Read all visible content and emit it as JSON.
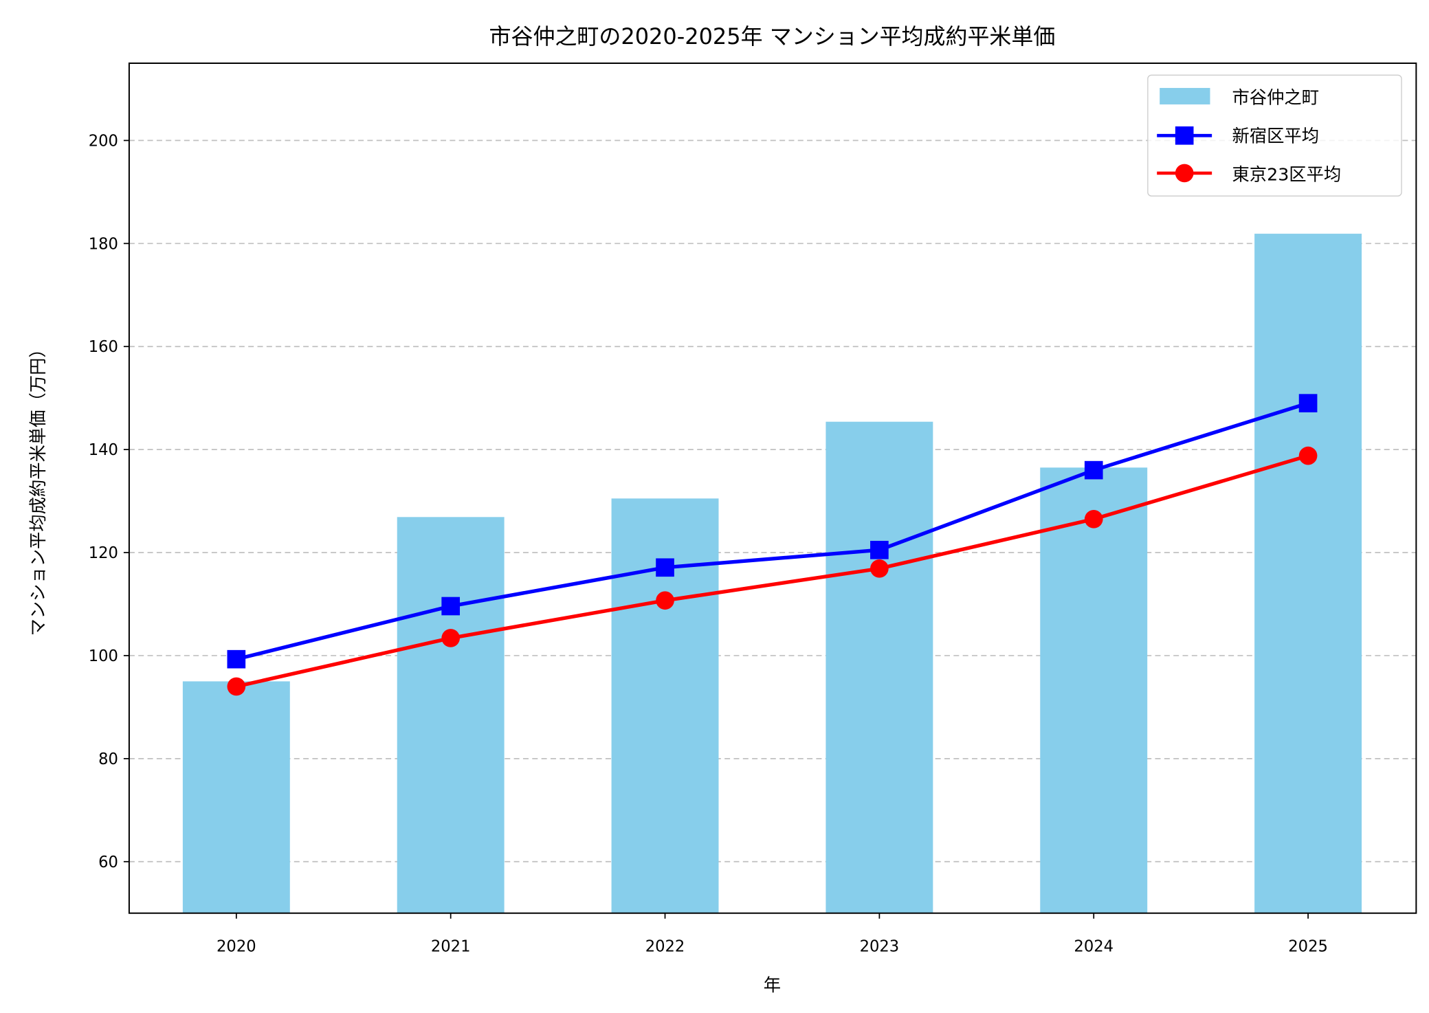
{
  "chart_data": {
    "type": "bar+line",
    "title": "市谷仲之町の2020-2025年 マンション平均成約平米単価",
    "xlabel": "年",
    "ylabel": "マンション平均成約平米単価（万円）",
    "categories": [
      "2020",
      "2021",
      "2022",
      "2023",
      "2024",
      "2025"
    ],
    "ylim": [
      50,
      215
    ],
    "yticks": [
      60,
      80,
      100,
      120,
      140,
      160,
      180,
      200
    ],
    "grid": "y-dashed",
    "legend_position": "top-right",
    "series": [
      {
        "name": "市谷仲之町",
        "kind": "bar",
        "color": "#87ceeb",
        "values": [
          95.0,
          126.9,
          130.5,
          145.4,
          136.5,
          181.9
        ]
      },
      {
        "name": "新宿区平均",
        "kind": "line",
        "marker": "square",
        "color": "#0000ff",
        "values": [
          99.3,
          109.6,
          117.1,
          120.5,
          136.0,
          149.0
        ]
      },
      {
        "name": "東京23区平均",
        "kind": "line",
        "marker": "circle",
        "color": "#ff0000",
        "values": [
          94.0,
          103.4,
          110.7,
          116.9,
          126.5,
          138.8
        ]
      }
    ]
  }
}
